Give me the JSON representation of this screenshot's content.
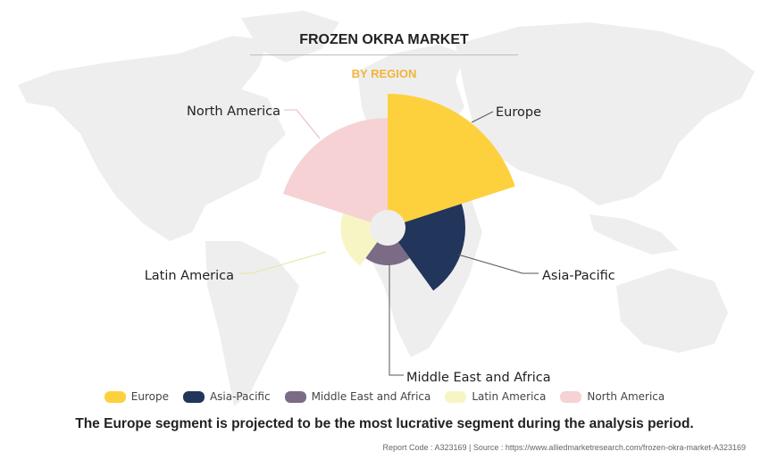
{
  "title": "FROZEN OKRA MARKET",
  "subtitle": "BY REGION",
  "chart_data": {
    "type": "polar-area",
    "categories": [
      "Europe",
      "Asia-Pacific",
      "Middle East and Africa",
      "Latin America",
      "North America"
    ],
    "values": [
      100,
      58,
      28,
      35,
      82
    ],
    "value_scale": "relative radius (no axis printed)",
    "colors": [
      "#FDD13D",
      "#22355A",
      "#7B6B86",
      "#F8F5C4",
      "#F6D2D4"
    ],
    "legend_position": "bottom",
    "grid": false
  },
  "legend": [
    {
      "label": "Europe",
      "color": "#FDD13D"
    },
    {
      "label": "Asia-Pacific",
      "color": "#22355A"
    },
    {
      "label": "Middle East and Africa",
      "color": "#7B6B86"
    },
    {
      "label": "Latin America",
      "color": "#F8F5C4"
    },
    {
      "label": "North America",
      "color": "#F6D2D4"
    }
  ],
  "footnote": "The Europe segment is projected to be the most lucrative segment during the analysis period.",
  "source": "Report Code : A323169  |  Source : https://www.alliedmarketresearch.com/frozen-okra-market-A323169"
}
